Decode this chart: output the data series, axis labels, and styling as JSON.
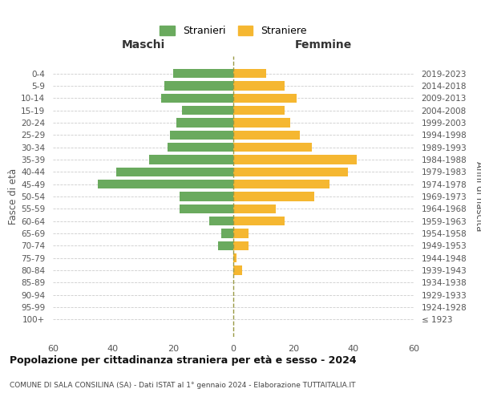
{
  "age_groups": [
    "0-4",
    "5-9",
    "10-14",
    "15-19",
    "20-24",
    "25-29",
    "30-34",
    "35-39",
    "40-44",
    "45-49",
    "50-54",
    "55-59",
    "60-64",
    "65-69",
    "70-74",
    "75-79",
    "80-84",
    "85-89",
    "90-94",
    "95-99",
    "100+"
  ],
  "birth_years": [
    "2019-2023",
    "2014-2018",
    "2009-2013",
    "2004-2008",
    "1999-2003",
    "1994-1998",
    "1989-1993",
    "1984-1988",
    "1979-1983",
    "1974-1978",
    "1969-1973",
    "1964-1968",
    "1959-1963",
    "1954-1958",
    "1949-1953",
    "1944-1948",
    "1939-1943",
    "1934-1938",
    "1929-1933",
    "1924-1928",
    "≤ 1923"
  ],
  "maschi": [
    20,
    23,
    24,
    17,
    19,
    21,
    22,
    28,
    39,
    45,
    18,
    18,
    8,
    4,
    5,
    0,
    0,
    0,
    0,
    0,
    0
  ],
  "femmine": [
    11,
    17,
    21,
    17,
    19,
    22,
    26,
    41,
    38,
    32,
    27,
    14,
    17,
    5,
    5,
    1,
    3,
    0,
    0,
    0,
    0
  ],
  "color_maschi": "#6aaa5e",
  "color_femmine": "#f5b731",
  "title": "Popolazione per cittadinanza straniera per età e sesso - 2024",
  "subtitle": "COMUNE DI SALA CONSILINA (SA) - Dati ISTAT al 1° gennaio 2024 - Elaborazione TUTTAITALIA.IT",
  "legend_maschi": "Stranieri",
  "legend_femmine": "Straniere",
  "xlabel_left": "Maschi",
  "xlabel_right": "Femmine",
  "ylabel_left": "Fasce di età",
  "ylabel_right": "Anni di nascita",
  "xlim": 60,
  "background_color": "#ffffff"
}
